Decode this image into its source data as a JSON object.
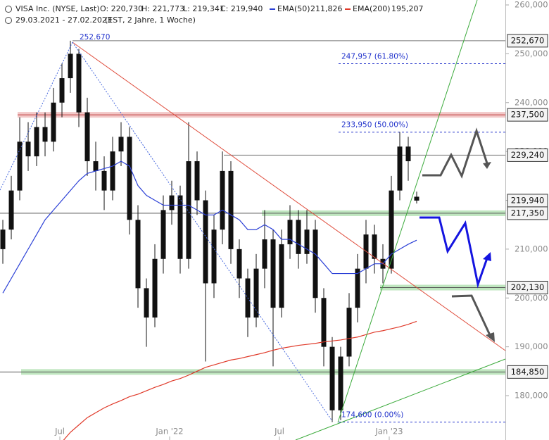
{
  "chart_data": {
    "type": "candlestick",
    "title": "VISA Inc. (NYSE, Last)",
    "quote": [
      "O: 220,730",
      "H: 221,773",
      "L: 219,341",
      "C: 219,940"
    ],
    "period": "29.03.2021 - 27.02.2023",
    "period_note": "(EST, 2 Jahre, 1 Woche)",
    "x": [
      0,
      2,
      4,
      6,
      8,
      10,
      12,
      14,
      16,
      18,
      20,
      22,
      24,
      26,
      28,
      30,
      32,
      34,
      36,
      38,
      40,
      42,
      44,
      46,
      48,
      50,
      52,
      54,
      56,
      58,
      60,
      62,
      64,
      66,
      68,
      70,
      72,
      74,
      76,
      78,
      80,
      82,
      84,
      86,
      88,
      90,
      92,
      94,
      96,
      98
    ],
    "open": [
      210,
      214,
      222,
      232,
      229,
      235,
      232,
      240,
      245,
      250,
      238,
      228,
      226,
      222,
      230,
      233,
      216,
      202,
      196,
      208,
      218,
      221,
      208,
      228,
      220,
      203,
      214,
      226,
      210,
      204,
      196,
      206,
      212,
      198,
      211,
      216,
      209,
      214,
      200,
      190,
      177,
      188,
      198,
      206,
      213,
      208,
      206,
      222,
      231,
      220.73
    ],
    "high": [
      216,
      225,
      237,
      236,
      238,
      238,
      243,
      248,
      252.67,
      251,
      241,
      232,
      229,
      233,
      236,
      235,
      219,
      204,
      211,
      221,
      224,
      223,
      236,
      230,
      222,
      217,
      230,
      228,
      212,
      206,
      209,
      218,
      214,
      214,
      219,
      218,
      218,
      216,
      202,
      192,
      190,
      201,
      209,
      216,
      215,
      211,
      225,
      234,
      233,
      221.773
    ],
    "low": [
      207,
      212,
      220,
      226,
      227,
      229,
      230,
      237,
      242,
      235,
      225,
      222,
      218,
      220,
      227,
      213,
      198,
      190,
      194,
      205,
      215,
      205,
      206,
      217,
      187,
      200,
      211,
      207,
      200,
      192,
      194,
      202,
      186,
      196,
      208,
      206,
      207,
      197,
      186,
      174.6,
      175,
      186,
      195,
      203,
      205,
      203,
      205,
      220,
      224,
      219.341
    ],
    "close": [
      214,
      222,
      232,
      229,
      235,
      232,
      240,
      245,
      250,
      238,
      228,
      226,
      222,
      230,
      233,
      216,
      202,
      196,
      208,
      218,
      221,
      208,
      228,
      220,
      203,
      214,
      226,
      210,
      204,
      196,
      206,
      212,
      198,
      211,
      216,
      209,
      214,
      200,
      190,
      177,
      188,
      198,
      206,
      213,
      208,
      206,
      222,
      231,
      228,
      219.94
    ],
    "candle_color": "#111111",
    "series": [
      {
        "name": "EMA(50)",
        "last_label": "211,826",
        "color": "#2a3fd6",
        "values": [
          201,
          204,
          207,
          210,
          213,
          216,
          218,
          220,
          222,
          224,
          225.5,
          226,
          226.5,
          227,
          228,
          227,
          223,
          221,
          220,
          219,
          219,
          219,
          219,
          218,
          217,
          217,
          218,
          217,
          216,
          214,
          214,
          215,
          214,
          212,
          212,
          211,
          210,
          209,
          207,
          205,
          205,
          205,
          205,
          206,
          207,
          207,
          209,
          210,
          211,
          211.83
        ]
      },
      {
        "name": "EMA(200)",
        "last_label": "195,207",
        "color": "#e03a2a",
        "values": [
          null,
          null,
          null,
          null,
          null,
          null,
          null,
          170.5,
          172.5,
          174,
          175.5,
          176.5,
          177.5,
          178.3,
          179,
          179.8,
          180.3,
          181,
          181.7,
          182.3,
          183,
          183.5,
          184.2,
          185,
          185.8,
          186.3,
          186.8,
          187.3,
          187.6,
          188,
          188.4,
          188.8,
          189.3,
          189.7,
          190,
          190.3,
          190.5,
          190.7,
          191,
          191.2,
          191.4,
          191.7,
          192,
          192.5,
          193,
          193.3,
          193.7,
          194.1,
          194.6,
          195.21
        ]
      }
    ],
    "xlim": [
      -0.67,
      119
    ],
    "xticks": [
      {
        "value": 13.5,
        "label": "Jul"
      },
      {
        "value": 39.5,
        "label": "Jan '22"
      },
      {
        "value": 65.5,
        "label": "Jul"
      },
      {
        "value": 91.5,
        "label": "Jan '23"
      }
    ],
    "ylim": [
      170.92,
      261.01
    ],
    "yticks": [
      {
        "value": 180,
        "label": "180,000"
      },
      {
        "value": 190,
        "label": "190,000"
      },
      {
        "value": 200,
        "label": "200,000"
      },
      {
        "value": 210,
        "label": "210,000"
      },
      {
        "value": 220,
        "label": "220,000"
      },
      {
        "value": 230,
        "label": "230,000"
      },
      {
        "value": 240,
        "label": "240,000"
      },
      {
        "value": 250,
        "label": "250,000"
      },
      {
        "value": 260,
        "label": "260,000"
      }
    ],
    "levels": [
      {
        "value": 252.67,
        "label": "252,670"
      },
      {
        "value": 237.5,
        "label": "237,500"
      },
      {
        "value": 229.24,
        "label": "229,240"
      },
      {
        "value": 219.94,
        "label": "219,940"
      },
      {
        "value": 217.35,
        "label": "217,350"
      },
      {
        "value": 202.13,
        "label": "202,130"
      },
      {
        "value": 184.85,
        "label": "184,850"
      }
    ],
    "fibonacci": [
      {
        "value": 247.957,
        "label": "247,957 (61.80%)"
      },
      {
        "value": 233.95,
        "label": "233,950 (50.00%)"
      },
      {
        "value": 174.6,
        "label": "174,600 (0.00%)"
      }
    ],
    "peak": {
      "value": 252.67,
      "label": "252.670"
    }
  }
}
